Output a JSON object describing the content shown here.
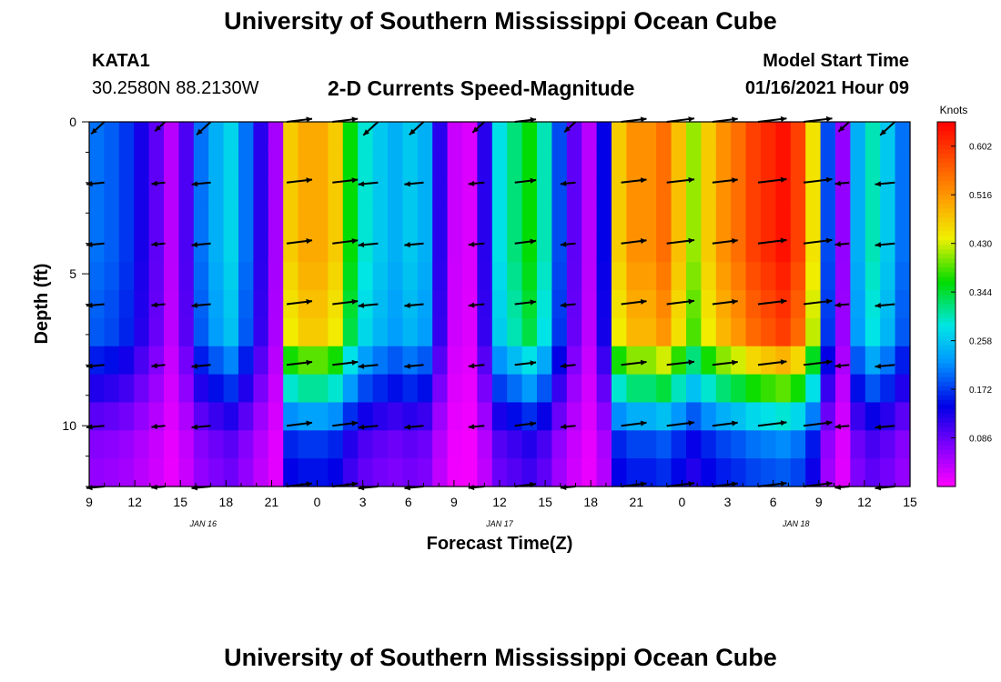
{
  "header": {
    "title": "University of Southern Mississippi Ocean Cube",
    "footer_title": "University of Southern Mississippi Ocean Cube",
    "station_id": "KATA1",
    "station_coords": "30.2580N 88.2130W",
    "chart_title": "2-D Currents Speed-Magnitude",
    "start_label": "Model Start Time",
    "start_value": "01/16/2021 Hour 09"
  },
  "chart_data": {
    "type": "heatmap",
    "title": "2-D Currents Speed-Magnitude",
    "xlabel": "Forecast Time(Z)",
    "ylabel": "Depth (ft)",
    "xlim": [
      0,
      54
    ],
    "ylim": [
      0,
      12
    ],
    "y_inverted": true,
    "x_ticks": [
      {
        "h": 0,
        "label": "9"
      },
      {
        "h": 3,
        "label": "12"
      },
      {
        "h": 6,
        "label": "15"
      },
      {
        "h": 9,
        "label": "18"
      },
      {
        "h": 12,
        "label": "21"
      },
      {
        "h": 15,
        "label": "0"
      },
      {
        "h": 18,
        "label": "3"
      },
      {
        "h": 21,
        "label": "6"
      },
      {
        "h": 24,
        "label": "9"
      },
      {
        "h": 27,
        "label": "12"
      },
      {
        "h": 30,
        "label": "15"
      },
      {
        "h": 33,
        "label": "18"
      },
      {
        "h": 36,
        "label": "21"
      },
      {
        "h": 39,
        "label": "0"
      },
      {
        "h": 42,
        "label": "3"
      },
      {
        "h": 45,
        "label": "6"
      },
      {
        "h": 48,
        "label": "9"
      },
      {
        "h": 51,
        "label": "12"
      },
      {
        "h": 54,
        "label": "15"
      }
    ],
    "date_labels": [
      {
        "h": 7.5,
        "label": "JAN 16"
      },
      {
        "h": 27,
        "label": "JAN 17"
      },
      {
        "h": 46.5,
        "label": "JAN 18"
      }
    ],
    "y_ticks": [
      {
        "d": 0,
        "label": "0"
      },
      {
        "d": 5,
        "label": "5"
      },
      {
        "d": 10,
        "label": "10"
      }
    ],
    "colorbar": {
      "unit": "Knots",
      "min": 0.0,
      "max": 0.645,
      "ticks": [
        "0.602",
        "0.516",
        "0.430",
        "0.344",
        "0.258",
        "0.172",
        "0.086"
      ],
      "tick_values": [
        0.602,
        0.516,
        0.43,
        0.344,
        0.258,
        0.172,
        0.086
      ]
    },
    "depths": [
      0,
      1,
      2,
      3,
      4,
      5,
      6,
      7,
      8,
      9,
      10,
      11,
      12
    ],
    "time_hours": [
      0,
      1,
      2,
      3,
      4,
      5,
      6,
      7,
      8,
      9,
      10,
      11,
      12,
      13,
      14,
      15,
      16,
      17,
      18,
      19,
      20,
      21,
      22,
      23,
      24,
      25,
      26,
      27,
      28,
      29,
      30,
      31,
      32,
      33,
      34,
      35,
      36,
      37,
      38,
      39,
      40,
      41,
      42,
      43,
      44,
      45,
      46,
      47,
      48,
      49,
      50,
      51,
      52,
      53,
      54
    ],
    "speed_surface": [
      0.2,
      0.19,
      0.17,
      0.13,
      0.09,
      0.04,
      0.1,
      0.2,
      0.24,
      0.27,
      0.2,
      0.12,
      0.05,
      0.47,
      0.5,
      0.5,
      0.47,
      0.36,
      0.29,
      0.26,
      0.24,
      0.26,
      0.24,
      0.12,
      0.03,
      0.02,
      0.12,
      0.28,
      0.32,
      0.36,
      0.3,
      0.18,
      0.09,
      0.04,
      0.14,
      0.47,
      0.52,
      0.52,
      0.55,
      0.48,
      0.41,
      0.47,
      0.52,
      0.55,
      0.59,
      0.61,
      0.63,
      0.59,
      0.45,
      0.18,
      0.06,
      0.24,
      0.3,
      0.26,
      0.2
    ],
    "depth_factor": [
      1.0,
      1.0,
      1.0,
      1.0,
      1.0,
      0.98,
      0.96,
      0.94,
      0.78,
      0.62,
      0.46,
      0.34,
      0.3
    ],
    "vectors": {
      "times": [
        1,
        5,
        8,
        13,
        16,
        19,
        22,
        26,
        28,
        32,
        35,
        38,
        41,
        44,
        47,
        50,
        53
      ],
      "depths": [
        0,
        2,
        4,
        6,
        8,
        10,
        12
      ],
      "note": "direction arrows, roughly eastward during flood and southwestward/westward during ebb"
    }
  }
}
